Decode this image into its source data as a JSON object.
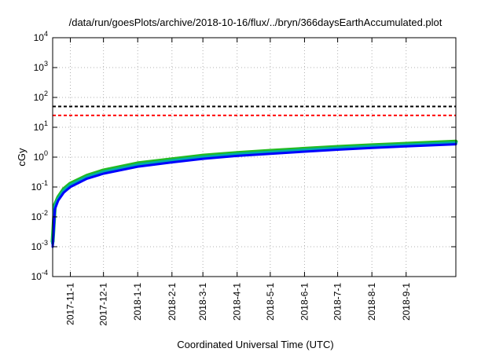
{
  "chart_data": {
    "type": "line",
    "title": "/data/run/goesPlots/archive/2018-10-16/flux/../bryn/366daysEarthAccumulated.plot",
    "xlabel": "Coordinated Universal Time (UTC)",
    "ylabel": "cGy",
    "yscale": "log",
    "ylim": [
      0.0001,
      10000
    ],
    "xlim": [
      "2017-10-16",
      "2018-10-16"
    ],
    "x_ticks": [
      "2017-11-1",
      "2017-12-1",
      "2018-1-1",
      "2018-2-1",
      "2018-3-1",
      "2018-4-1",
      "2018-5-1",
      "2018-6-1",
      "2018-7-1",
      "2018-8-1",
      "2018-9-1"
    ],
    "y_ticks": [
      {
        "base": "10",
        "exp": "-4",
        "value": 0.0001
      },
      {
        "base": "10",
        "exp": "-3",
        "value": 0.001
      },
      {
        "base": "10",
        "exp": "-2",
        "value": 0.01
      },
      {
        "base": "10",
        "exp": "-1",
        "value": 0.1
      },
      {
        "base": "10",
        "exp": "0",
        "value": 1
      },
      {
        "base": "10",
        "exp": "1",
        "value": 10
      },
      {
        "base": "10",
        "exp": "2",
        "value": 100
      },
      {
        "base": "10",
        "exp": "3",
        "value": 1000
      },
      {
        "base": "10",
        "exp": "4",
        "value": 10000
      }
    ],
    "grid": true,
    "reference_lines": [
      {
        "value": 50,
        "color": "#000000",
        "style": "dashed"
      },
      {
        "value": 25,
        "color": "#ff0000",
        "style": "dashed"
      }
    ],
    "series": [
      {
        "color": "#22bb22",
        "x": [
          "2017-10-16",
          "2017-10-18",
          "2017-10-21",
          "2017-10-26",
          "2017-11-1",
          "2017-11-16",
          "2017-12-1",
          "2018-1-1",
          "2018-2-1",
          "2018-3-1",
          "2018-4-1",
          "2018-5-1",
          "2018-6-1",
          "2018-7-1",
          "2018-8-1",
          "2018-9-1",
          "2018-10-16"
        ],
        "y": [
          0.0015,
          0.025,
          0.045,
          0.085,
          0.13,
          0.24,
          0.36,
          0.62,
          0.85,
          1.12,
          1.38,
          1.62,
          1.9,
          2.2,
          2.5,
          2.8,
          3.3
        ]
      },
      {
        "color": "#00aaaa",
        "x": [
          "2017-10-16",
          "2017-10-18",
          "2017-10-21",
          "2017-10-26",
          "2017-11-1",
          "2017-11-16",
          "2017-12-1",
          "2018-1-1",
          "2018-2-1",
          "2018-3-1",
          "2018-4-1",
          "2018-5-1",
          "2018-6-1",
          "2018-7-1",
          "2018-8-1",
          "2018-9-1",
          "2018-10-16"
        ],
        "y": [
          0.0013,
          0.022,
          0.04,
          0.075,
          0.115,
          0.215,
          0.32,
          0.55,
          0.76,
          1.0,
          1.24,
          1.46,
          1.72,
          2.0,
          2.28,
          2.55,
          3.0
        ]
      },
      {
        "color": "#0000ff",
        "x": [
          "2017-10-16",
          "2017-10-18",
          "2017-10-21",
          "2017-10-26",
          "2017-11-1",
          "2017-11-16",
          "2017-12-1",
          "2018-1-1",
          "2018-2-1",
          "2018-3-1",
          "2018-4-1",
          "2018-5-1",
          "2018-6-1",
          "2018-7-1",
          "2018-8-1",
          "2018-9-1",
          "2018-10-16"
        ],
        "y": [
          0.001,
          0.018,
          0.035,
          0.065,
          0.1,
          0.19,
          0.28,
          0.48,
          0.67,
          0.88,
          1.1,
          1.3,
          1.53,
          1.78,
          2.05,
          2.3,
          2.7
        ]
      }
    ]
  }
}
